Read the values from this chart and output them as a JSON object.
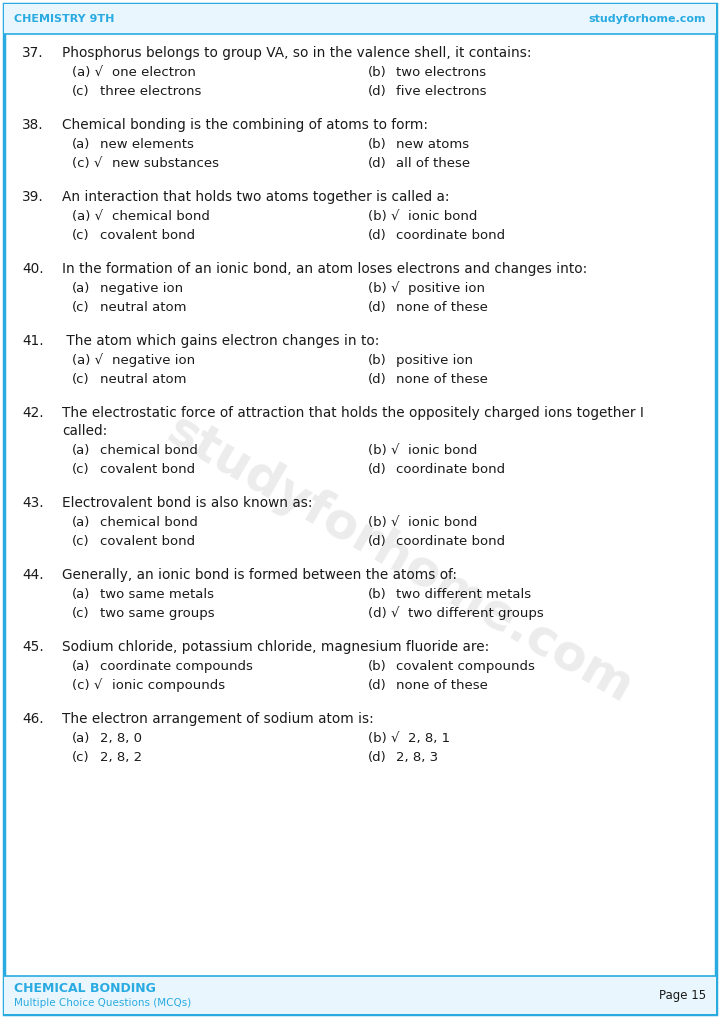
{
  "header_left": "CHEMISTRY 9TH",
  "header_right": "studyforhome.com",
  "footer_left": "CHEMICAL BONDING",
  "footer_left2": "Multiple Choice Questions (MCQs)",
  "footer_right": "Page 15",
  "bg_color": "#ffffff",
  "border_color": "#29ABE2",
  "header_color": "#29ABE2",
  "footer_title_color": "#29ABE2",
  "text_color": "#1a1a1a",
  "watermark_text": "studyforhome.com",
  "questions": [
    {
      "num": "37.",
      "text": "Phosphorus belongs to group VA, so in the valence shell, it contains:",
      "multiline": false,
      "options": [
        {
          "label": "(a)",
          "check": true,
          "text": "one electron",
          "side": "left"
        },
        {
          "label": "(b)",
          "check": false,
          "text": "two electrons",
          "side": "right"
        },
        {
          "label": "(c)",
          "check": false,
          "text": "three electrons",
          "side": "left"
        },
        {
          "label": "(d)",
          "check": false,
          "text": "five electrons",
          "side": "right"
        }
      ]
    },
    {
      "num": "38.",
      "text": "Chemical bonding is the combining of atoms to form:",
      "multiline": false,
      "options": [
        {
          "label": "(a)",
          "check": false,
          "text": "new elements",
          "side": "left"
        },
        {
          "label": "(b)",
          "check": false,
          "text": "new atoms",
          "side": "right"
        },
        {
          "label": "(c)",
          "check": true,
          "text": "new substances",
          "side": "left"
        },
        {
          "label": "(d)",
          "check": false,
          "text": "all of these",
          "side": "right"
        }
      ]
    },
    {
      "num": "39.",
      "text": "An interaction that holds two atoms together is called a:",
      "multiline": false,
      "options": [
        {
          "label": "(a)",
          "check": true,
          "text": "chemical bond",
          "side": "left"
        },
        {
          "label": "(b)",
          "check": true,
          "text": "ionic bond",
          "side": "right"
        },
        {
          "label": "(c)",
          "check": false,
          "text": "covalent bond",
          "side": "left"
        },
        {
          "label": "(d)",
          "check": false,
          "text": "coordinate bond",
          "side": "right"
        }
      ]
    },
    {
      "num": "40.",
      "text": "In the formation of an ionic bond, an atom loses electrons and changes into:",
      "multiline": false,
      "options": [
        {
          "label": "(a)",
          "check": false,
          "text": "negative ion",
          "side": "left"
        },
        {
          "label": "(b)",
          "check": true,
          "text": "positive ion",
          "side": "right"
        },
        {
          "label": "(c)",
          "check": false,
          "text": "neutral atom",
          "side": "left"
        },
        {
          "label": "(d)",
          "check": false,
          "text": "none of these",
          "side": "right"
        }
      ]
    },
    {
      "num": "41.",
      "text": " The atom which gains electron changes in to:",
      "multiline": false,
      "options": [
        {
          "label": "(a)",
          "check": true,
          "text": "negative ion",
          "side": "left"
        },
        {
          "label": "(b)",
          "check": false,
          "text": "positive ion",
          "side": "right"
        },
        {
          "label": "(c)",
          "check": false,
          "text": "neutral atom",
          "side": "left"
        },
        {
          "label": "(d)",
          "check": false,
          "text": "none of these",
          "side": "right"
        }
      ]
    },
    {
      "num": "42.",
      "text": "The electrostatic force of attraction that holds the oppositely charged ions together I",
      "text2": "called:",
      "multiline": true,
      "options": [
        {
          "label": "(a)",
          "check": false,
          "text": "chemical bond",
          "side": "left"
        },
        {
          "label": "(b)",
          "check": true,
          "text": "ionic bond",
          "side": "right"
        },
        {
          "label": "(c)",
          "check": false,
          "text": "covalent bond",
          "side": "left"
        },
        {
          "label": "(d)",
          "check": false,
          "text": "coordinate bond",
          "side": "right"
        }
      ]
    },
    {
      "num": "43.",
      "text": "Electrovalent bond is also known as:",
      "multiline": false,
      "options": [
        {
          "label": "(a)",
          "check": false,
          "text": "chemical bond",
          "side": "left"
        },
        {
          "label": "(b)",
          "check": true,
          "text": "ionic bond",
          "side": "right"
        },
        {
          "label": "(c)",
          "check": false,
          "text": "covalent bond",
          "side": "left"
        },
        {
          "label": "(d)",
          "check": false,
          "text": "coordinate bond",
          "side": "right"
        }
      ]
    },
    {
      "num": "44.",
      "text": "Generally, an ionic bond is formed between the atoms of:",
      "multiline": false,
      "options": [
        {
          "label": "(a)",
          "check": false,
          "text": "two same metals",
          "side": "left"
        },
        {
          "label": "(b)",
          "check": false,
          "text": "two different metals",
          "side": "right"
        },
        {
          "label": "(c)",
          "check": false,
          "text": "two same groups",
          "side": "left"
        },
        {
          "label": "(d)",
          "check": true,
          "text": "two different groups",
          "side": "right"
        }
      ]
    },
    {
      "num": "45.",
      "text": "Sodium chloride, potassium chloride, magnesium fluoride are:",
      "multiline": false,
      "options": [
        {
          "label": "(a)",
          "check": false,
          "text": "coordinate compounds",
          "side": "left"
        },
        {
          "label": "(b)",
          "check": false,
          "text": "covalent compounds",
          "side": "right"
        },
        {
          "label": "(c)",
          "check": true,
          "text": "ionic compounds",
          "side": "left"
        },
        {
          "label": "(d)",
          "check": false,
          "text": "none of these",
          "side": "right"
        }
      ]
    },
    {
      "num": "46.",
      "text": "The electron arrangement of sodium atom is:",
      "multiline": false,
      "options": [
        {
          "label": "(a)",
          "check": false,
          "text": "2, 8, 0",
          "side": "left"
        },
        {
          "label": "(b)",
          "check": true,
          "text": "2, 8, 1",
          "side": "right"
        },
        {
          "label": "(c)",
          "check": false,
          "text": "2, 8, 2",
          "side": "left"
        },
        {
          "label": "(d)",
          "check": false,
          "text": "2, 8, 3",
          "side": "right"
        }
      ]
    }
  ]
}
